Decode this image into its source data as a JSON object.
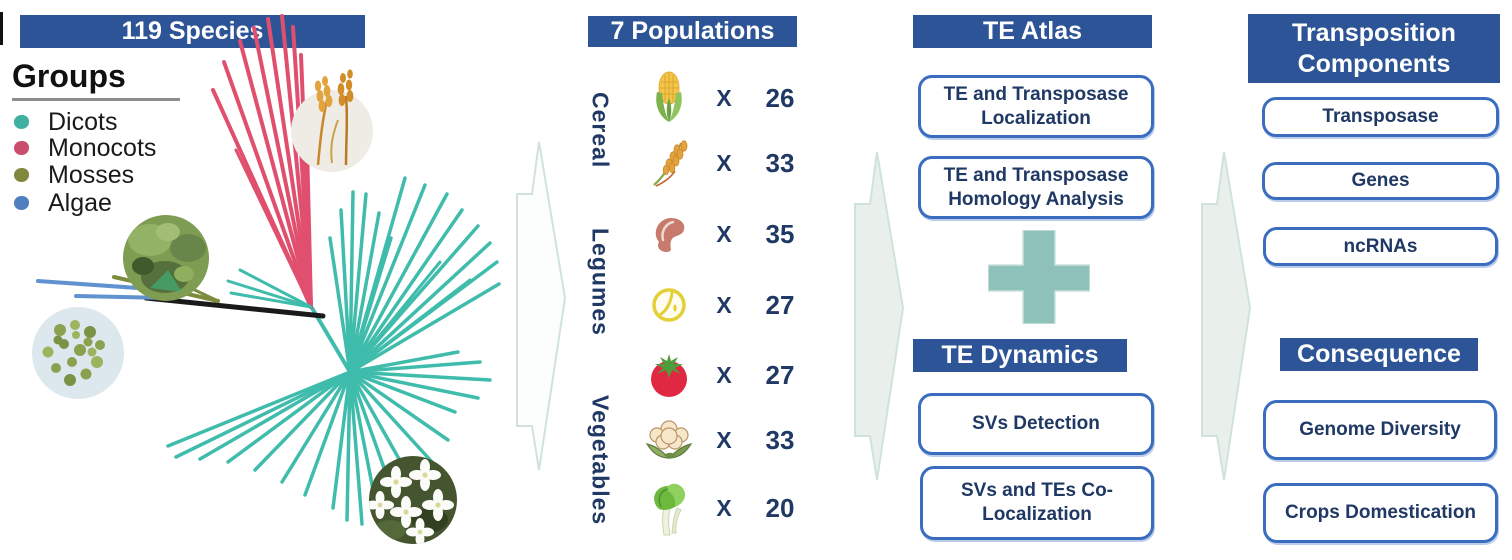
{
  "panels": {
    "species": {
      "header": "119 Species",
      "legend_title": "Groups",
      "legend": [
        {
          "label": "Dicots",
          "color": "#3fb0a0"
        },
        {
          "label": "Monocots",
          "color": "#c94d6d"
        },
        {
          "label": "Mosses",
          "color": "#80883f"
        },
        {
          "label": "Algae",
          "color": "#4f7fbf"
        }
      ]
    },
    "populations": {
      "header": "7 Populations",
      "multiply_symbol": "X",
      "groups": [
        {
          "label": "Cereal"
        },
        {
          "label": "Legumes"
        },
        {
          "label": "Vegetables"
        }
      ],
      "rows": [
        {
          "icon": "corn-icon",
          "count": "26",
          "group": "Cereal"
        },
        {
          "icon": "rice-icon",
          "count": "33",
          "group": "Cereal"
        },
        {
          "icon": "kidney-bean-icon",
          "count": "35",
          "group": "Legumes"
        },
        {
          "icon": "soybean-icon",
          "count": "27",
          "group": "Legumes"
        },
        {
          "icon": "tomato-icon",
          "count": "27",
          "group": "Vegetables"
        },
        {
          "icon": "cauliflower-icon",
          "count": "33",
          "group": "Vegetables"
        },
        {
          "icon": "bok-choy-icon",
          "count": "20",
          "group": "Vegetables"
        }
      ]
    },
    "te_atlas": {
      "header": "TE Atlas",
      "boxes": [
        "TE and Transposase Localization",
        "TE and Transposase Homology Analysis"
      ]
    },
    "te_dynamics": {
      "header": "TE Dynamics",
      "boxes": [
        "SVs Detection",
        "SVs and TEs Co-Localization"
      ]
    },
    "transposition": {
      "header": "Transposition Components",
      "boxes": [
        "Transposase",
        "Genes",
        "ncRNAs"
      ]
    },
    "consequence": {
      "header": "Consequence",
      "boxes": [
        "Genome Diversity",
        "Crops Domestication"
      ]
    }
  },
  "colors": {
    "header-bg": "#2d5496",
    "box-border": "#3a6cbf",
    "box-text": "#1f3864",
    "plus": "#8ec1b9",
    "arrow-fill": "#e9f0ec",
    "arrow-fill-light": "#fcfdfd",
    "arrow-stroke": "#cfe3db"
  },
  "tree": {
    "colors": {
      "t": "#3fbcab",
      "p": "#e0506e",
      "o": "#7d8c3c",
      "b": "#5f92cf",
      "k": "#1a1a1a"
    },
    "branches": [
      [
        350,
        372,
        312,
        308,
        "t",
        4
      ],
      [
        146,
        298,
        323,
        316,
        "k",
        5
      ],
      [
        38,
        281,
        152,
        289,
        "b",
        4
      ],
      [
        76,
        296,
        166,
        298,
        "b",
        4
      ],
      [
        114,
        277,
        218,
        301,
        "o",
        4
      ],
      [
        142,
        265,
        218,
        301,
        "o",
        3
      ],
      [
        311,
        307,
        213,
        90,
        "p",
        4
      ],
      [
        311,
        307,
        224,
        62,
        "p",
        4
      ],
      [
        311,
        307,
        240,
        41,
        "p",
        4
      ],
      [
        311,
        307,
        254,
        28,
        "p",
        4
      ],
      [
        311,
        307,
        268,
        19,
        "p",
        4
      ],
      [
        311,
        307,
        282,
        16,
        "p",
        4
      ],
      [
        311,
        307,
        293,
        27,
        "p",
        4
      ],
      [
        311,
        307,
        301,
        55,
        "p",
        4
      ],
      [
        311,
        307,
        306,
        105,
        "p",
        4
      ],
      [
        311,
        307,
        236,
        150,
        "p",
        3
      ],
      [
        311,
        307,
        228,
        281,
        "t",
        3
      ],
      [
        311,
        307,
        240,
        270,
        "t",
        3
      ],
      [
        311,
        307,
        231,
        293,
        "t",
        3
      ],
      [
        350,
        372,
        330,
        238,
        "t",
        3.5
      ],
      [
        350,
        372,
        341,
        210,
        "t",
        3.5
      ],
      [
        350,
        372,
        353,
        192,
        "t",
        3.5
      ],
      [
        350,
        372,
        366,
        194,
        "t",
        3.5
      ],
      [
        350,
        372,
        379,
        213,
        "t",
        3.5
      ],
      [
        350,
        372,
        391,
        238,
        "t",
        3.5
      ],
      [
        350,
        372,
        405,
        178,
        "t",
        3.5
      ],
      [
        350,
        372,
        425,
        185,
        "t",
        3.5
      ],
      [
        350,
        372,
        447,
        194,
        "t",
        3.5
      ],
      [
        350,
        372,
        462,
        210,
        "t",
        3.5
      ],
      [
        350,
        372,
        478,
        226,
        "t",
        3.5
      ],
      [
        350,
        372,
        490,
        243,
        "t",
        3.5
      ],
      [
        350,
        372,
        497,
        262,
        "t",
        3.5
      ],
      [
        350,
        372,
        499,
        284,
        "t",
        3.5
      ],
      [
        350,
        372,
        470,
        280,
        "t",
        3
      ],
      [
        350,
        372,
        440,
        262,
        "t",
        3
      ],
      [
        350,
        372,
        458,
        352,
        "t",
        3.5
      ],
      [
        350,
        372,
        480,
        362,
        "t",
        3.5
      ],
      [
        350,
        372,
        490,
        380,
        "t",
        3.5
      ],
      [
        350,
        372,
        478,
        398,
        "t",
        3.5
      ],
      [
        350,
        372,
        455,
        412,
        "t",
        3.5
      ],
      [
        350,
        372,
        448,
        440,
        "t",
        3.5
      ],
      [
        350,
        372,
        432,
        462,
        "t",
        3.5
      ],
      [
        350,
        372,
        412,
        482,
        "t",
        3.5
      ],
      [
        350,
        372,
        395,
        499,
        "t",
        3.5
      ],
      [
        350,
        372,
        378,
        515,
        "t",
        3.5
      ],
      [
        350,
        372,
        362,
        524,
        "t",
        3.5
      ],
      [
        350,
        372,
        347,
        520,
        "t",
        3.5
      ],
      [
        350,
        372,
        333,
        508,
        "t",
        3.5
      ],
      [
        350,
        372,
        305,
        495,
        "t",
        3.5
      ],
      [
        350,
        372,
        282,
        482,
        "t",
        3.5
      ],
      [
        350,
        372,
        255,
        470,
        "t",
        3.5
      ],
      [
        350,
        372,
        228,
        462,
        "t",
        3.5
      ],
      [
        350,
        372,
        200,
        459,
        "t",
        3.5
      ],
      [
        350,
        372,
        176,
        457,
        "t",
        3.5
      ],
      [
        350,
        372,
        168,
        446,
        "t",
        3.5
      ]
    ]
  }
}
